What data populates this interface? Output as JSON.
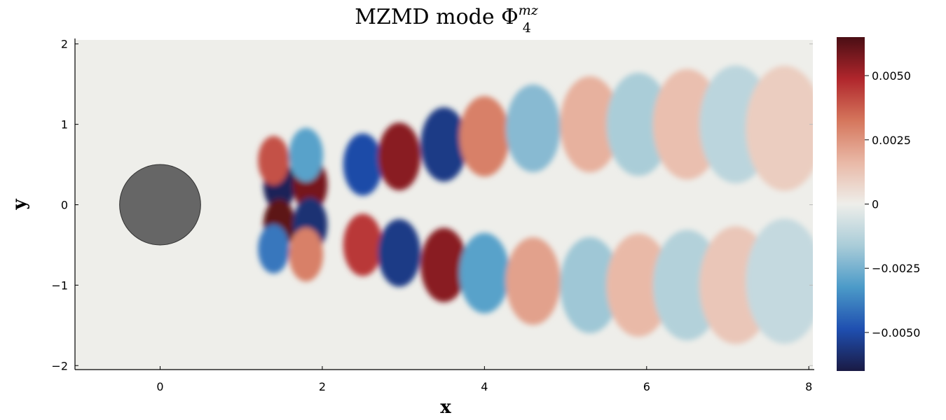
{
  "chart_data": {
    "type": "heatmap",
    "title": {
      "main": "MZMD mode Φ",
      "sup": "mz",
      "sub": "4"
    },
    "xlabel": "x",
    "ylabel": "y",
    "xlim": [
      -1.05,
      8.05
    ],
    "ylim": [
      -2.05,
      2.05
    ],
    "xticks": [
      {
        "v": 0,
        "label": "0"
      },
      {
        "v": 2,
        "label": "2"
      },
      {
        "v": 4,
        "label": "4"
      },
      {
        "v": 6,
        "label": "6"
      },
      {
        "v": 8,
        "label": "8"
      }
    ],
    "yticks": [
      {
        "v": 2,
        "label": "2"
      },
      {
        "v": 1,
        "label": "1"
      },
      {
        "v": 0,
        "label": "0"
      },
      {
        "v": -1,
        "label": "−1"
      },
      {
        "v": -2,
        "label": "−2"
      }
    ],
    "colorbar": {
      "range": [
        -0.0065,
        0.0065
      ],
      "ticks": [
        {
          "v": 0.005,
          "label": "0.0050"
        },
        {
          "v": 0.0025,
          "label": "0.0025"
        },
        {
          "v": 0,
          "label": "0"
        },
        {
          "v": -0.0025,
          "label": "−0.0025"
        },
        {
          "v": -0.005,
          "label": "−0.0050"
        }
      ],
      "colors": [
        "#1a1a44",
        "#1f4fb0",
        "#4b9ac8",
        "#a9ccd8",
        "#eeeeea",
        "#e9b8a6",
        "#d5765c",
        "#b0262c",
        "#4a0e14"
      ]
    },
    "obstacle": {
      "shape": "circle",
      "center": [
        0,
        0
      ],
      "radius": 0.5,
      "color": "#666666"
    },
    "field_peaks": [
      {
        "x": 1.47,
        "y": 0.24,
        "value": -0.0062
      },
      {
        "x": 1.47,
        "y": -0.24,
        "value": 0.0062
      },
      {
        "x": 1.85,
        "y": 0.25,
        "value": 0.0058
      },
      {
        "x": 1.85,
        "y": -0.25,
        "value": -0.0058
      },
      {
        "x": 1.4,
        "y": 0.55,
        "value": 0.004
      },
      {
        "x": 1.4,
        "y": -0.55,
        "value": -0.004
      },
      {
        "x": 1.8,
        "y": 0.62,
        "value": -0.003
      },
      {
        "x": 1.8,
        "y": -0.62,
        "value": 0.003
      },
      {
        "x": 2.5,
        "y": 0.5,
        "value": -0.005
      },
      {
        "x": 2.5,
        "y": -0.5,
        "value": 0.0045
      },
      {
        "x": 2.95,
        "y": 0.6,
        "value": 0.0055
      },
      {
        "x": 2.95,
        "y": -0.6,
        "value": -0.0055
      },
      {
        "x": 3.5,
        "y": 0.75,
        "value": -0.0055
      },
      {
        "x": 3.5,
        "y": -0.75,
        "value": 0.0055
      },
      {
        "x": 4.0,
        "y": 0.85,
        "value": 0.003
      },
      {
        "x": 4.0,
        "y": -0.85,
        "value": -0.003
      },
      {
        "x": 4.6,
        "y": 0.95,
        "value": -0.0022
      },
      {
        "x": 4.6,
        "y": -0.95,
        "value": 0.0022
      },
      {
        "x": 5.3,
        "y": 1.0,
        "value": 0.0018
      },
      {
        "x": 5.3,
        "y": -1.0,
        "value": -0.0018
      },
      {
        "x": 5.9,
        "y": 1.0,
        "value": -0.0016
      },
      {
        "x": 5.9,
        "y": -1.0,
        "value": 0.0016
      },
      {
        "x": 6.5,
        "y": 1.0,
        "value": 0.0014
      },
      {
        "x": 6.5,
        "y": -1.0,
        "value": -0.0014
      },
      {
        "x": 7.1,
        "y": 1.0,
        "value": -0.0012
      },
      {
        "x": 7.1,
        "y": -1.0,
        "value": 0.0012
      },
      {
        "x": 7.7,
        "y": 0.95,
        "value": 0.001
      },
      {
        "x": 7.7,
        "y": -0.95,
        "value": -0.001
      }
    ]
  }
}
